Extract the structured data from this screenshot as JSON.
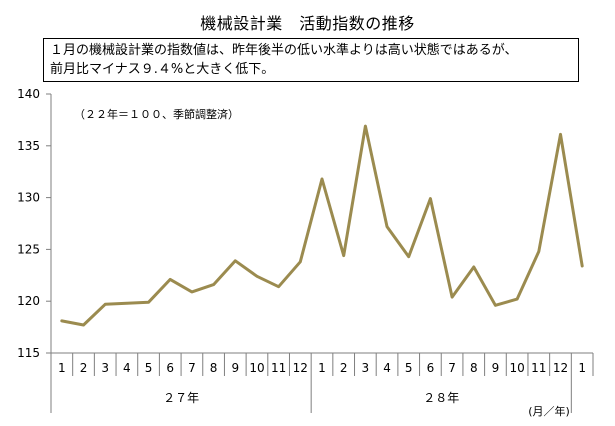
{
  "title": "機械設計業　活動指数の推移",
  "note": {
    "line1": "１月の機械設計業の指数値は、昨年後半の低い水準よりは高い状態ではあるが、",
    "line2": "前月比マイナス９.４%と大きく低下。"
  },
  "colors": {
    "line": "#9b8b4f",
    "axis": "#7f7f7f"
  },
  "chart_data": {
    "type": "line",
    "title": "機械設計業　活動指数の推移",
    "annotation": "（２２年＝１００、季節調整済）",
    "ylim": [
      115,
      140
    ],
    "yticks": [
      115,
      120,
      125,
      130,
      135,
      140
    ],
    "categories": [
      "1",
      "2",
      "3",
      "4",
      "5",
      "6",
      "7",
      "8",
      "9",
      "10",
      "11",
      "12",
      "1",
      "2",
      "3",
      "4",
      "5",
      "6",
      "7",
      "8",
      "9",
      "10",
      "11",
      "12",
      "1"
    ],
    "year_groups": [
      {
        "label": "２７年",
        "start": 0,
        "end": 11
      },
      {
        "label": "２８年",
        "start": 12,
        "end": 23
      }
    ],
    "x_unit": "(月／年)",
    "series": [
      {
        "values": [
          118.1,
          117.7,
          119.7,
          119.8,
          119.9,
          122.1,
          120.9,
          121.6,
          123.9,
          122.4,
          121.4,
          123.8,
          131.8,
          124.4,
          136.9,
          127.2,
          124.3,
          129.9,
          120.4,
          123.3,
          119.6,
          120.2,
          124.8,
          136.1,
          123.4
        ]
      }
    ],
    "grid": false,
    "legend": "none"
  }
}
